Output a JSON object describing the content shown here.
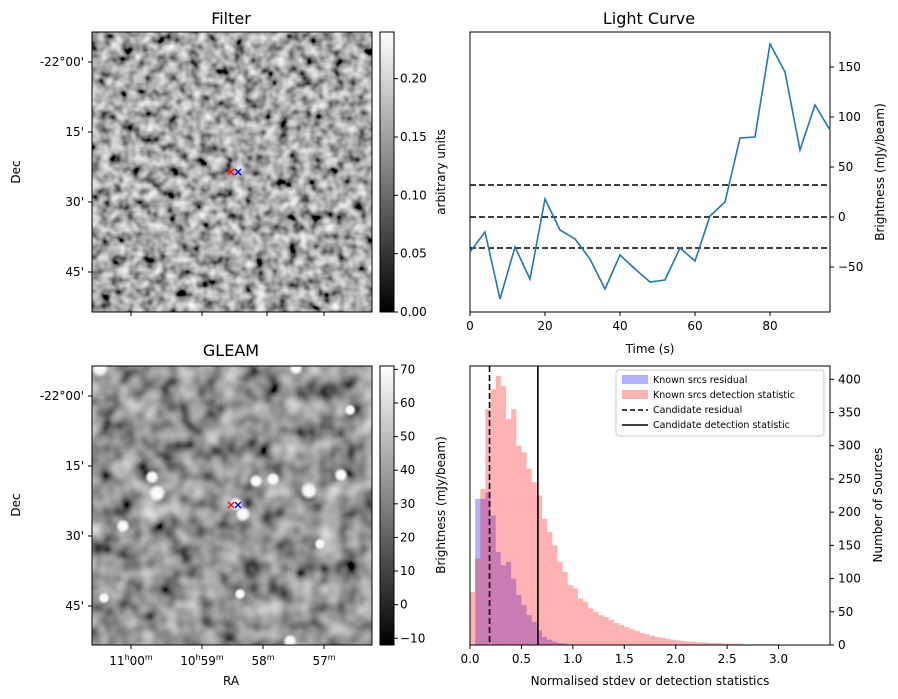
{
  "chart_data": [
    {
      "type": "heatmap",
      "title": "Filter",
      "xlabel": "",
      "ylabel": "Dec",
      "y_ticks": [
        "-22°00'",
        "15'",
        "30'",
        "45'"
      ],
      "colorbar": {
        "label": "arbitrary units",
        "range": [
          0,
          0.24
        ],
        "ticks": [
          "0.00",
          "0.05",
          "0.10",
          "0.15",
          "0.20"
        ],
        "tick_values": [
          0,
          0.05,
          0.1,
          0.15,
          0.2
        ],
        "colormap": "gray"
      },
      "markers": [
        {
          "color": "#ff0000",
          "symbol": "x"
        },
        {
          "color": "#0000ff",
          "symbol": "x"
        }
      ]
    },
    {
      "type": "line",
      "title": "Light Curve",
      "xlabel": "Time (s)",
      "ylabel": "Brightness (mJy/beam)",
      "xlim": [
        0,
        96
      ],
      "ylim": [
        -95,
        185
      ],
      "x_ticks": [
        0,
        20,
        40,
        60,
        80
      ],
      "y_ticks": [
        -50,
        0,
        50,
        100,
        150
      ],
      "series": [
        {
          "color": "#1f77b4",
          "x": [
            0,
            4,
            8,
            12,
            16,
            20,
            24,
            28,
            32,
            36,
            40,
            44,
            48,
            52,
            56,
            60,
            64,
            68,
            72,
            76,
            80,
            84,
            88,
            92,
            96
          ],
          "y": [
            -35,
            -15,
            -82,
            -30,
            -62,
            18,
            -13,
            -22,
            -42,
            -72,
            -38,
            -52,
            -65,
            -63,
            -31,
            -44,
            1,
            15,
            79,
            80,
            173,
            145,
            67,
            112,
            87
          ]
        }
      ],
      "hlines": [
        {
          "y": 32,
          "style": "dashed"
        },
        {
          "y": 0,
          "style": "dashed"
        },
        {
          "y": -31,
          "style": "dashed"
        }
      ]
    },
    {
      "type": "heatmap",
      "title": "GLEAM",
      "xlabel": "RA",
      "ylabel": "Dec",
      "x_ticks": [
        {
          "h": "11",
          "m": "00"
        },
        {
          "h": "10",
          "m": "59"
        },
        {
          "h": "",
          "m": "58"
        },
        {
          "h": "",
          "m": "57"
        }
      ],
      "y_ticks": [
        "-22°00'",
        "15'",
        "30'",
        "45'"
      ],
      "colorbar": {
        "label": "Brightness (mJy/beam)",
        "range": [
          -12,
          71
        ],
        "ticks": [
          "−10",
          "0",
          "10",
          "20",
          "30",
          "40",
          "50",
          "60",
          "70"
        ],
        "tick_values": [
          -10,
          0,
          10,
          20,
          30,
          40,
          50,
          60,
          70
        ],
        "colormap": "gray"
      },
      "markers": [
        {
          "color": "#ff0000",
          "symbol": "x"
        },
        {
          "color": "#0000ff",
          "symbol": "x"
        }
      ]
    },
    {
      "type": "bar",
      "title": "",
      "xlabel": "Normalised stdev or detection statistics",
      "ylabel": "Number of Sources",
      "xlim": [
        0,
        3.5
      ],
      "ylim": [
        0,
        420
      ],
      "x_ticks": [
        "0.0",
        "0.5",
        "1.0",
        "1.5",
        "2.0",
        "2.5",
        "3.0"
      ],
      "x_tick_values": [
        0,
        0.5,
        1,
        1.5,
        2,
        2.5,
        3
      ],
      "y_ticks": [
        0,
        50,
        100,
        150,
        200,
        250,
        300,
        350,
        400
      ],
      "legend_position": "top-right",
      "bin_width": 0.05,
      "series": [
        {
          "name": "Known srcs residual",
          "color": "#0000ff",
          "alpha": 0.3,
          "start": 0.0,
          "values": [
            0,
            220,
            220,
            230,
            195,
            140,
            120,
            125,
            100,
            75,
            60,
            45,
            35,
            22,
            12,
            8,
            5,
            3,
            2,
            1,
            1
          ]
        },
        {
          "name": "Known srcs detection statistic",
          "color": "#ff0000",
          "alpha": 0.3,
          "start": 0.0,
          "values": [
            80,
            130,
            235,
            355,
            385,
            405,
            390,
            340,
            355,
            300,
            290,
            265,
            245,
            225,
            190,
            170,
            150,
            125,
            110,
            90,
            85,
            70,
            65,
            55,
            50,
            45,
            42,
            38,
            33,
            30,
            27,
            24,
            21,
            18,
            16,
            14,
            12,
            11,
            9,
            8,
            7,
            6,
            5,
            5,
            4,
            4,
            3,
            3,
            3,
            2,
            2,
            2,
            2,
            1,
            1,
            1,
            1,
            1,
            1,
            1,
            1,
            1,
            0,
            1,
            0,
            1,
            0,
            1,
            0,
            0
          ]
        }
      ],
      "vlines": [
        {
          "name": "Candidate residual",
          "x": 0.19,
          "style": "dashed"
        },
        {
          "name": "Candidate detection statistic",
          "x": 0.66,
          "style": "solid"
        }
      ],
      "extra_axis_label_left": "Brightness (mJy/beam)"
    }
  ]
}
